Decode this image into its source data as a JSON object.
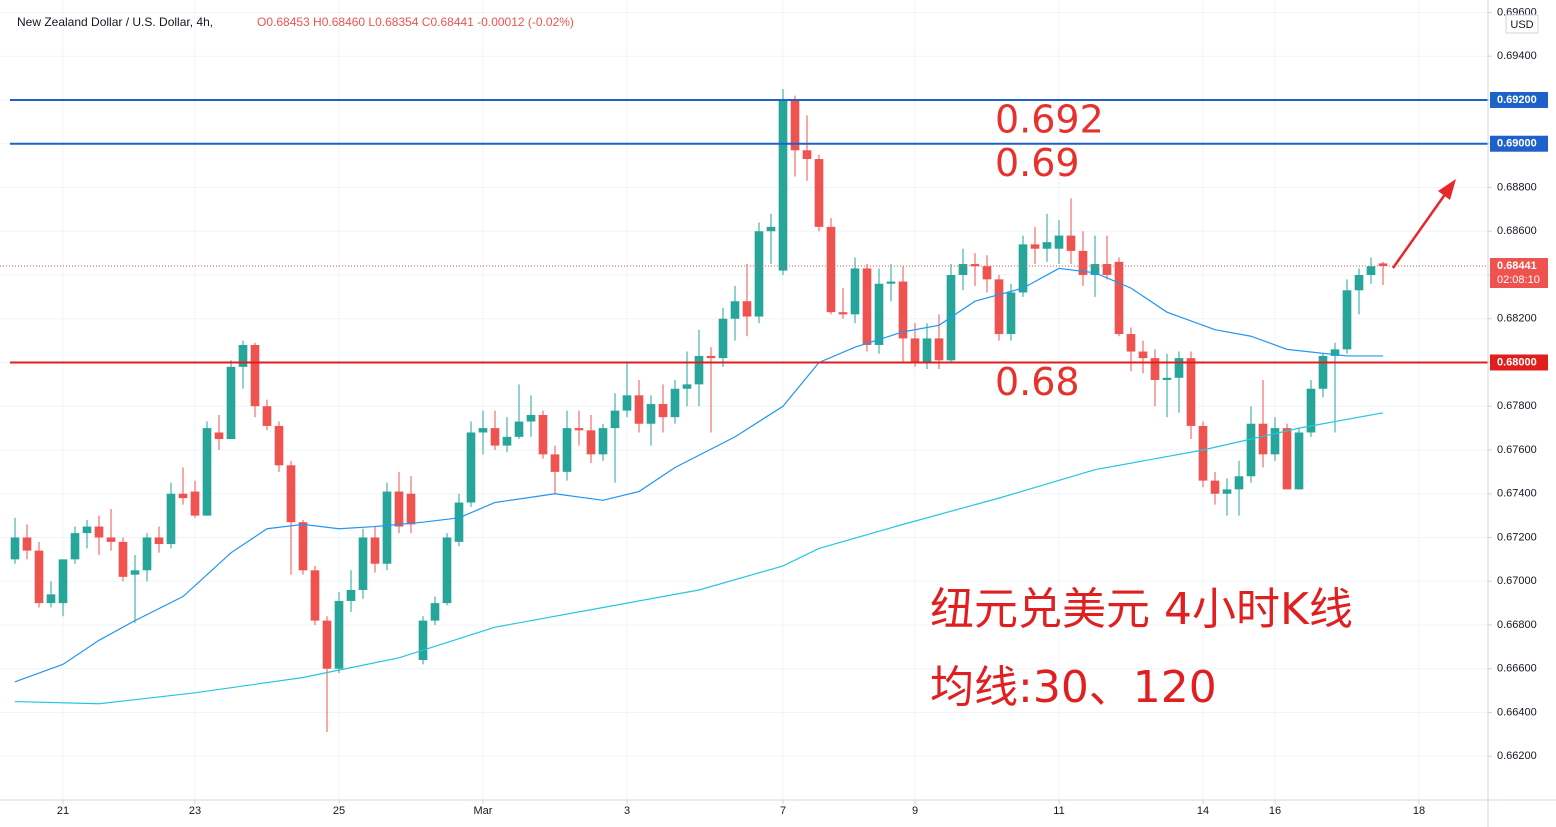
{
  "chart_data": {
    "type": "candlestick",
    "title": "New Zealand Dollar / U.S. Dollar, 4h,",
    "ohlc_text": "O0.68453 H0.68460 L0.68354 C0.68441 -0.00012 (-0.02%)",
    "currency": "USD",
    "up_color": "#26a69a",
    "down_color": "#ef5350",
    "open": [
      0.671,
      0.672,
      0.6714,
      0.669,
      0.669,
      0.671,
      0.6722,
      0.6725,
      0.672,
      0.6718,
      0.6703,
      0.6705,
      0.672,
      0.6717,
      0.674,
      0.6741,
      0.673,
      0.6768,
      0.6765,
      0.6798,
      0.6808,
      0.678,
      0.6771,
      0.6753,
      0.6727,
      0.6705,
      0.6682,
      0.666,
      0.6691,
      0.6696,
      0.672,
      0.6708,
      0.6741,
      0.674,
      0.6664,
      0.6682,
      0.669,
      0.6718,
      0.6736,
      0.6768,
      0.677,
      0.6762,
      0.6766,
      0.6773,
      0.6776,
      0.6758,
      0.675,
      0.677,
      0.6769,
      0.6758,
      0.677,
      0.6778,
      0.6785,
      0.6772,
      0.6781,
      0.6775,
      0.6788,
      0.679,
      0.6803,
      0.6802,
      0.682,
      0.6828,
      0.6821,
      0.686,
      0.6842,
      0.692,
      0.6897,
      0.6893,
      0.6862,
      0.6823,
      0.6822,
      0.6843,
      0.6808,
      0.6836,
      0.6837,
      0.6811,
      0.68,
      0.6811,
      0.6801,
      0.684,
      0.6845,
      0.6844,
      0.6838,
      0.6813,
      0.6832,
      0.6854,
      0.6852,
      0.6852,
      0.6858,
      0.6851,
      0.684,
      0.6845,
      0.6846,
      0.6813,
      0.6805,
      0.6802,
      0.6792,
      0.6793,
      0.6802,
      0.6771,
      0.6746,
      0.674,
      0.6742,
      0.6748,
      0.6772,
      0.6758,
      0.677,
      0.6742,
      0.6768,
      0.6788,
      0.6803,
      0.6806,
      0.6833,
      0.684,
      0.68453
    ],
    "high": [
      0.6729,
      0.6726,
      0.6718,
      0.67,
      0.671,
      0.6725,
      0.6728,
      0.673,
      0.6733,
      0.672,
      0.6712,
      0.6722,
      0.6725,
      0.6745,
      0.6752,
      0.6746,
      0.6773,
      0.6776,
      0.6801,
      0.681,
      0.6809,
      0.6783,
      0.6773,
      0.6755,
      0.6728,
      0.6707,
      0.6684,
      0.6695,
      0.6705,
      0.6724,
      0.6725,
      0.6745,
      0.675,
      0.6748,
      0.6684,
      0.6693,
      0.6722,
      0.674,
      0.6773,
      0.6778,
      0.6778,
      0.6775,
      0.679,
      0.6785,
      0.6778,
      0.6762,
      0.6778,
      0.6778,
      0.6776,
      0.6772,
      0.6786,
      0.68,
      0.6792,
      0.6785,
      0.679,
      0.6792,
      0.6805,
      0.6815,
      0.6807,
      0.6825,
      0.6835,
      0.6845,
      0.6864,
      0.6868,
      0.6925,
      0.6922,
      0.6913,
      0.6895,
      0.6866,
      0.6834,
      0.6848,
      0.6845,
      0.6843,
      0.6845,
      0.6844,
      0.6818,
      0.6818,
      0.6822,
      0.6845,
      0.6852,
      0.685,
      0.6849,
      0.684,
      0.6836,
      0.6858,
      0.6862,
      0.6868,
      0.6865,
      0.6875,
      0.686,
      0.6858,
      0.6858,
      0.6848,
      0.6816,
      0.681,
      0.6806,
      0.6804,
      0.6805,
      0.6805,
      0.6773,
      0.675,
      0.6747,
      0.6755,
      0.678,
      0.6792,
      0.6775,
      0.6772,
      0.677,
      0.6792,
      0.6804,
      0.6809,
      0.6838,
      0.6843,
      0.6848,
      0.6846
    ],
    "low": [
      0.6708,
      0.671,
      0.6688,
      0.6688,
      0.6684,
      0.6708,
      0.6715,
      0.6712,
      0.6714,
      0.67,
      0.6681,
      0.67,
      0.6713,
      0.6715,
      0.6735,
      0.6729,
      0.673,
      0.676,
      0.6765,
      0.6788,
      0.6775,
      0.6769,
      0.675,
      0.6703,
      0.6703,
      0.668,
      0.6631,
      0.6658,
      0.6686,
      0.6692,
      0.6704,
      0.6705,
      0.6722,
      0.6722,
      0.6662,
      0.668,
      0.6689,
      0.6716,
      0.6734,
      0.6758,
      0.676,
      0.6759,
      0.6765,
      0.6766,
      0.6756,
      0.674,
      0.6746,
      0.6762,
      0.6754,
      0.6755,
      0.6745,
      0.6775,
      0.6768,
      0.6762,
      0.6768,
      0.6772,
      0.678,
      0.678,
      0.6768,
      0.6798,
      0.681,
      0.6812,
      0.6818,
      0.6845,
      0.684,
      0.6885,
      0.6883,
      0.686,
      0.6822,
      0.682,
      0.6818,
      0.6805,
      0.6804,
      0.6828,
      0.68,
      0.6798,
      0.6797,
      0.6797,
      0.68,
      0.6833,
      0.6835,
      0.6832,
      0.681,
      0.681,
      0.683,
      0.6845,
      0.6846,
      0.6845,
      0.6845,
      0.6835,
      0.683,
      0.6838,
      0.6812,
      0.6796,
      0.6795,
      0.678,
      0.6775,
      0.6777,
      0.6765,
      0.6743,
      0.6735,
      0.673,
      0.673,
      0.6745,
      0.6752,
      0.6755,
      0.6742,
      0.6742,
      0.6766,
      0.6784,
      0.6768,
      0.6804,
      0.6822,
      0.6836,
      0.68354
    ],
    "close": [
      0.672,
      0.6714,
      0.669,
      0.6694,
      0.671,
      0.6722,
      0.6725,
      0.672,
      0.6718,
      0.6702,
      0.6705,
      0.672,
      0.6717,
      0.674,
      0.6738,
      0.673,
      0.677,
      0.6765,
      0.6798,
      0.6808,
      0.678,
      0.6771,
      0.6753,
      0.6727,
      0.6705,
      0.6682,
      0.666,
      0.6691,
      0.6696,
      0.672,
      0.6708,
      0.6741,
      0.6725,
      0.6726,
      0.6682,
      0.669,
      0.672,
      0.6736,
      0.6768,
      0.677,
      0.6762,
      0.6766,
      0.6773,
      0.6776,
      0.6758,
      0.675,
      0.677,
      0.6769,
      0.6758,
      0.677,
      0.6778,
      0.6785,
      0.6772,
      0.6781,
      0.6775,
      0.6788,
      0.679,
      0.6803,
      0.6802,
      0.682,
      0.6828,
      0.6821,
      0.686,
      0.6862,
      0.692,
      0.6897,
      0.6893,
      0.6862,
      0.6823,
      0.6822,
      0.6843,
      0.6808,
      0.6836,
      0.6837,
      0.6811,
      0.68,
      0.6811,
      0.6801,
      0.684,
      0.6845,
      0.6844,
      0.6838,
      0.6813,
      0.6832,
      0.6854,
      0.6852,
      0.6855,
      0.6858,
      0.6851,
      0.684,
      0.6845,
      0.684,
      0.6813,
      0.6805,
      0.6802,
      0.6792,
      0.6793,
      0.6802,
      0.6771,
      0.6746,
      0.674,
      0.6742,
      0.6748,
      0.6772,
      0.6758,
      0.677,
      0.6742,
      0.6768,
      0.6788,
      0.6803,
      0.6806,
      0.6833,
      0.684,
      0.6844,
      0.68441
    ],
    "series": [
      {
        "color": "#2196f3",
        "x": [
          0,
          2,
          4,
          7,
          10,
          14,
          18,
          21,
          24,
          27,
          30,
          34,
          37,
          40,
          45,
          49,
          52,
          55,
          60,
          64,
          67,
          70,
          74,
          77,
          80,
          84,
          87,
          90,
          93,
          96,
          100,
          103,
          106,
          111,
          114
        ],
        "values": [
          0.6654,
          0.6658,
          0.6662,
          0.6673,
          0.6682,
          0.6693,
          0.6713,
          0.6724,
          0.6726,
          0.6724,
          0.6725,
          0.6727,
          0.6729,
          0.6736,
          0.674,
          0.6737,
          0.6741,
          0.6752,
          0.6766,
          0.678,
          0.68,
          0.6807,
          0.6814,
          0.6817,
          0.6828,
          0.6834,
          0.6843,
          0.6841,
          0.6834,
          0.6823,
          0.6815,
          0.6812,
          0.6806,
          0.6803,
          0.6803
        ]
      },
      {
        "color": "#26c6da",
        "x": [
          0,
          7,
          15,
          24,
          32,
          40,
          49,
          57,
          64,
          67,
          74,
          82,
          90,
          99,
          107,
          114
        ],
        "values": [
          0.6645,
          0.6644,
          0.6649,
          0.6656,
          0.6665,
          0.6679,
          0.6688,
          0.6696,
          0.6707,
          0.6715,
          0.6726,
          0.6738,
          0.6751,
          0.676,
          0.677,
          0.6777
        ]
      }
    ],
    "levels": [
      {
        "value": 0.692,
        "label": "0.69200",
        "text": "0.692",
        "color": "#1e62c9"
      },
      {
        "value": 0.69,
        "label": "0.69000",
        "text": "0.69",
        "color": "#1e62c9"
      },
      {
        "value": 0.68,
        "label": "0.68000",
        "text": "0.68",
        "color": "#e01e1e"
      }
    ],
    "last_price": {
      "value": 0.68441,
      "label": "0.68441",
      "countdown": "02:08:10",
      "color": "#ef5350"
    },
    "annotations": [
      "纽元兑美元 4小时K线",
      "均线:30、120"
    ],
    "xlim": [
      -1.25,
      122.75
    ],
    "xticks": [
      {
        "value": 4,
        "label": "21"
      },
      {
        "value": 15,
        "label": "23"
      },
      {
        "value": 27,
        "label": "25"
      },
      {
        "value": 39,
        "label": "Mar"
      },
      {
        "value": 51,
        "label": "3"
      },
      {
        "value": 64,
        "label": "7"
      },
      {
        "value": 75,
        "label": "9"
      },
      {
        "value": 87,
        "label": "11"
      },
      {
        "value": 99,
        "label": "14"
      },
      {
        "value": 105,
        "label": "16"
      },
      {
        "value": 117,
        "label": "18"
      }
    ],
    "ylim": [
      0.66,
      0.69657
    ],
    "yticks": [
      {
        "value": 0.662,
        "label": "0.66200"
      },
      {
        "value": 0.664,
        "label": "0.66400"
      },
      {
        "value": 0.666,
        "label": "0.66600"
      },
      {
        "value": 0.668,
        "label": "0.66800"
      },
      {
        "value": 0.67,
        "label": "0.67000"
      },
      {
        "value": 0.672,
        "label": "0.67200"
      },
      {
        "value": 0.674,
        "label": "0.67400"
      },
      {
        "value": 0.676,
        "label": "0.67600"
      },
      {
        "value": 0.678,
        "label": "0.67800"
      },
      {
        "value": 0.68,
        "label": "0.68000"
      },
      {
        "value": 0.682,
        "label": "0.68200"
      },
      {
        "value": 0.684,
        "label": "0.68400"
      },
      {
        "value": 0.686,
        "label": "0.68600"
      },
      {
        "value": 0.688,
        "label": "0.68800"
      },
      {
        "value": 0.69,
        "label": "0.69000"
      },
      {
        "value": 0.692,
        "label": "0.69200"
      },
      {
        "value": 0.694,
        "label": "0.69400"
      },
      {
        "value": 0.696,
        "label": "0.69600"
      }
    ],
    "grid": true
  }
}
